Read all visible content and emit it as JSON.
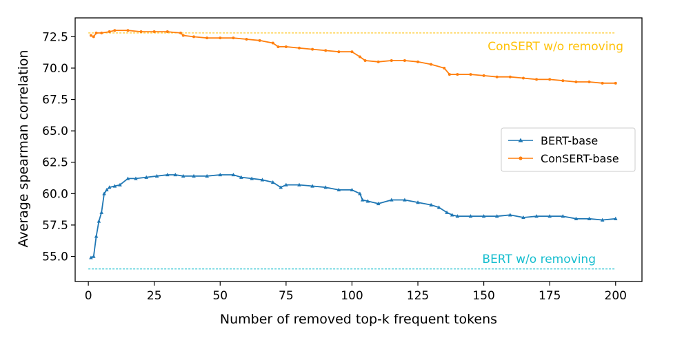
{
  "chart_data": {
    "type": "line",
    "title": "",
    "xlabel": "Number of removed top-k frequent tokens",
    "ylabel": "Average spearman correlation",
    "xlim": [
      -5,
      210
    ],
    "ylim": [
      53.0,
      74.0
    ],
    "xticks": [
      0,
      25,
      50,
      75,
      100,
      125,
      150,
      175,
      200
    ],
    "yticks": [
      55.0,
      57.5,
      60.0,
      62.5,
      65.0,
      67.5,
      70.0,
      72.5
    ],
    "xtick_labels": [
      "0",
      "25",
      "50",
      "75",
      "100",
      "125",
      "150",
      "175",
      "200"
    ],
    "ytick_labels": [
      "55.0",
      "57.5",
      "60.0",
      "62.5",
      "65.0",
      "67.5",
      "70.0",
      "72.5"
    ],
    "grid": false,
    "legend_position": "center-right",
    "series": [
      {
        "name": "BERT-base",
        "color": "#1f77b4",
        "marker": "triangle",
        "x": [
          1,
          2,
          3,
          4,
          5,
          6,
          7,
          8,
          10,
          12,
          15,
          18,
          22,
          26,
          30,
          33,
          36,
          40,
          45,
          50,
          55,
          58,
          62,
          66,
          70,
          73,
          75,
          80,
          85,
          90,
          95,
          100,
          103,
          104,
          106,
          110,
          115,
          120,
          125,
          130,
          133,
          136,
          138,
          140,
          145,
          150,
          155,
          160,
          165,
          170,
          175,
          180,
          185,
          190,
          195,
          200
        ],
        "y": [
          54.9,
          55.0,
          56.6,
          57.8,
          58.5,
          60.0,
          60.3,
          60.5,
          60.6,
          60.7,
          61.2,
          61.2,
          61.3,
          61.4,
          61.5,
          61.5,
          61.4,
          61.4,
          61.4,
          61.5,
          61.5,
          61.3,
          61.2,
          61.1,
          60.9,
          60.5,
          60.7,
          60.7,
          60.6,
          60.5,
          60.3,
          60.3,
          60.0,
          59.5,
          59.4,
          59.2,
          59.5,
          59.5,
          59.3,
          59.1,
          58.9,
          58.5,
          58.3,
          58.2,
          58.2,
          58.2,
          58.2,
          58.3,
          58.1,
          58.2,
          58.2,
          58.2,
          58.0,
          58.0,
          57.9,
          58.0
        ]
      },
      {
        "name": "ConSERT-base",
        "color": "#ff7f0e",
        "marker": "circle",
        "x": [
          1,
          2,
          3,
          5,
          8,
          10,
          15,
          20,
          25,
          30,
          35,
          36,
          40,
          45,
          50,
          55,
          60,
          65,
          70,
          72,
          75,
          80,
          85,
          90,
          95,
          100,
          103,
          105,
          110,
          115,
          120,
          125,
          130,
          135,
          137,
          140,
          145,
          150,
          155,
          160,
          165,
          170,
          175,
          180,
          185,
          190,
          195,
          200
        ],
        "y": [
          72.6,
          72.5,
          72.8,
          72.8,
          72.9,
          73.0,
          73.0,
          72.9,
          72.9,
          72.9,
          72.8,
          72.6,
          72.5,
          72.4,
          72.4,
          72.4,
          72.3,
          72.2,
          72.0,
          71.7,
          71.7,
          71.6,
          71.5,
          71.4,
          71.3,
          71.3,
          70.9,
          70.6,
          70.5,
          70.6,
          70.6,
          70.5,
          70.3,
          70.0,
          69.5,
          69.5,
          69.5,
          69.4,
          69.3,
          69.3,
          69.2,
          69.1,
          69.1,
          69.0,
          68.9,
          68.9,
          68.8,
          68.8
        ]
      }
    ],
    "reference_lines": [
      {
        "label": "ConSERT w/o removing",
        "y": 72.8,
        "color": "#ffc107",
        "style": "dashed"
      },
      {
        "label": "BERT w/o removing",
        "y": 54.0,
        "color": "#17becf",
        "style": "dashed"
      }
    ]
  }
}
